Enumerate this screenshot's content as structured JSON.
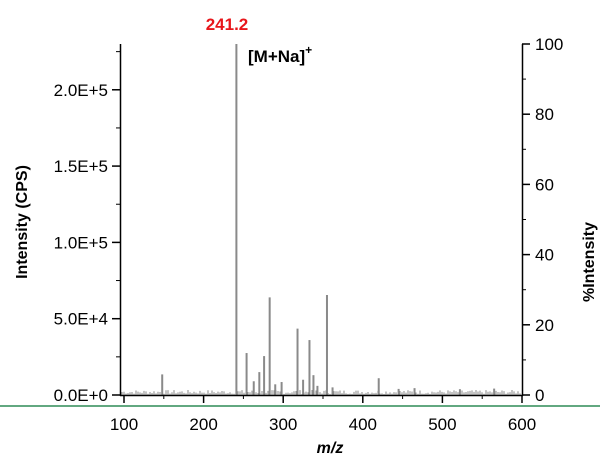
{
  "chart_data": {
    "type": "bar",
    "xlabel": "m/z",
    "ylabel": "Intensity (CPS)",
    "y2label": "%Intensity",
    "xlim": [
      90,
      600
    ],
    "ylim": [
      0,
      230000
    ],
    "y2lim": [
      0,
      100
    ],
    "xticks": [
      100,
      200,
      300,
      400,
      500,
      600
    ],
    "yticks": [
      "0.0E+0",
      "5.0E+4",
      "1.0E+5",
      "1.5E+5",
      "2.0E+5"
    ],
    "ytick_values": [
      0,
      50000,
      100000,
      150000,
      200000
    ],
    "y2ticks": [
      0,
      20,
      40,
      60,
      80,
      100
    ],
    "grid": false,
    "colors": {
      "peaks": "#8a8a8a",
      "base_peak_label": "#e8161b",
      "divider": "#2e8b57"
    },
    "annotations": {
      "base_peak_mz": "241.2",
      "ion": "[M+Na]",
      "ion_charge": "+"
    },
    "peaks": [
      {
        "x": 148,
        "y": 13500
      },
      {
        "x": 241.2,
        "y": 230000
      },
      {
        "x": 254,
        "y": 27500
      },
      {
        "x": 263,
        "y": 9000
      },
      {
        "x": 270,
        "y": 15000
      },
      {
        "x": 276,
        "y": 25500
      },
      {
        "x": 283,
        "y": 64000
      },
      {
        "x": 290,
        "y": 7000
      },
      {
        "x": 298,
        "y": 8500
      },
      {
        "x": 318,
        "y": 43500
      },
      {
        "x": 325,
        "y": 10000
      },
      {
        "x": 333,
        "y": 36000
      },
      {
        "x": 338,
        "y": 13000
      },
      {
        "x": 343,
        "y": 6000
      },
      {
        "x": 355,
        "y": 65500
      },
      {
        "x": 362,
        "y": 5000
      },
      {
        "x": 420,
        "y": 11000
      },
      {
        "x": 445,
        "y": 4000
      },
      {
        "x": 465,
        "y": 4500
      },
      {
        "x": 522,
        "y": 3800
      },
      {
        "x": 565,
        "y": 4200
      }
    ]
  }
}
